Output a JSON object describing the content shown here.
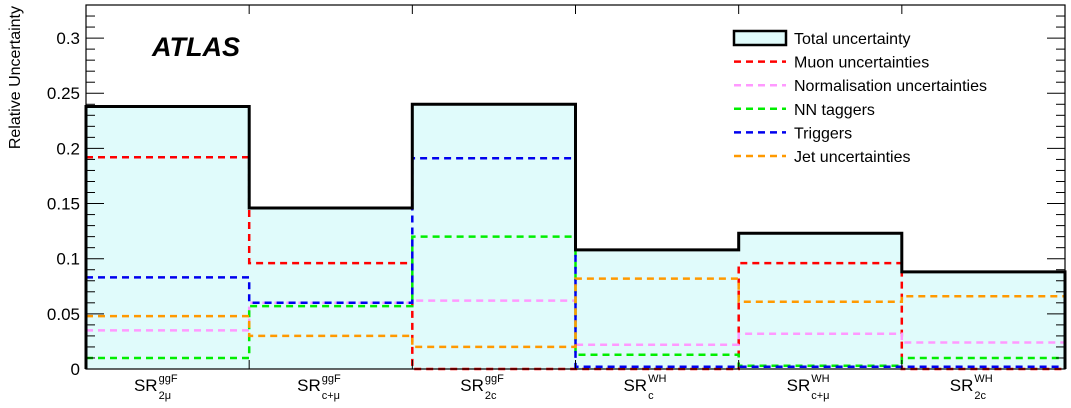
{
  "chart_data": {
    "type": "bar",
    "style": "step-histogram",
    "experiment_label": "ATLAS",
    "ylabel": "Relative Uncertainty",
    "ylim": [
      0,
      0.33
    ],
    "yticks": [
      {
        "value": 0,
        "label": "0"
      },
      {
        "value": 0.05,
        "label": "0.05"
      },
      {
        "value": 0.1,
        "label": "0.1"
      },
      {
        "value": 0.15,
        "label": "0.15"
      },
      {
        "value": 0.2,
        "label": "0.2"
      },
      {
        "value": 0.25,
        "label": "0.25"
      },
      {
        "value": 0.3,
        "label": "0.3"
      }
    ],
    "categories": [
      {
        "main": "SR",
        "sup": "ggF",
        "sub": "2μ"
      },
      {
        "main": "SR",
        "sup": "ggF",
        "sub": "c+μ"
      },
      {
        "main": "SR",
        "sup": "ggF",
        "sub": "2c"
      },
      {
        "main": "SR",
        "sup": "WH",
        "sub": "c"
      },
      {
        "main": "SR",
        "sup": "WH",
        "sub": "c+μ"
      },
      {
        "main": "SR",
        "sup": "WH",
        "sub": "2c"
      }
    ],
    "legend_position": "top-right",
    "series": [
      {
        "name": "Total uncertainty",
        "color": "#000000",
        "fill": "#e0fbfb",
        "dashed": false,
        "values": [
          0.238,
          0.146,
          0.24,
          0.108,
          0.123,
          0.088
        ]
      },
      {
        "name": "Muon uncertainties",
        "color": "#ff0000",
        "dashed": true,
        "values": [
          0.192,
          0.096,
          0.0,
          0.0,
          0.096,
          0.0
        ]
      },
      {
        "name": "Normalisation uncertainties",
        "color": "#ff99ff",
        "dashed": true,
        "values": [
          0.035,
          0.06,
          0.062,
          0.022,
          0.032,
          0.024
        ]
      },
      {
        "name": "NN taggers",
        "color": "#00ee00",
        "dashed": true,
        "values": [
          0.01,
          0.057,
          0.12,
          0.013,
          0.003,
          0.01
        ]
      },
      {
        "name": "Triggers",
        "color": "#0000ee",
        "dashed": true,
        "values": [
          0.083,
          0.06,
          0.191,
          0.002,
          0.002,
          0.002
        ]
      },
      {
        "name": "Jet uncertainties",
        "color": "#ff9900",
        "dashed": true,
        "values": [
          0.048,
          0.03,
          0.02,
          0.082,
          0.061,
          0.066
        ]
      }
    ]
  }
}
